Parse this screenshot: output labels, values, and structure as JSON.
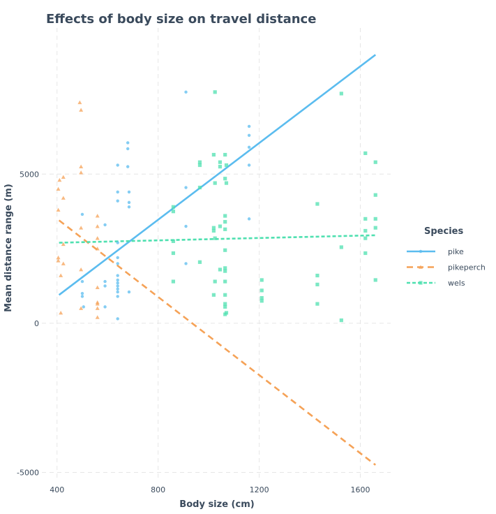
{
  "chart_data": {
    "type": "scatter",
    "title": "Effects of body size on travel distance",
    "xlabel": "Body size (cm)",
    "ylabel": "Mean distance range (m)",
    "xlim": [
      340,
      1720
    ],
    "ylim": [
      -5200,
      9900
    ],
    "x_ticks": [
      400,
      800,
      1200,
      1600
    ],
    "y_ticks": [
      -5000,
      0,
      5000
    ],
    "grid": true,
    "legend_title": "Species",
    "legend_position": "right",
    "series": [
      {
        "name": "pike",
        "color": "#5bbcef",
        "marker": "circle",
        "line_style": "solid",
        "trend": [
          [
            408,
            950
          ],
          [
            1660,
            9000
          ]
        ],
        "points": [
          [
            500,
            3650
          ],
          [
            500,
            1000
          ],
          [
            500,
            900
          ],
          [
            500,
            1400
          ],
          [
            505,
            550
          ],
          [
            590,
            3300
          ],
          [
            590,
            1400
          ],
          [
            590,
            1250
          ],
          [
            590,
            550
          ],
          [
            640,
            5300
          ],
          [
            640,
            4400
          ],
          [
            640,
            4100
          ],
          [
            640,
            2700
          ],
          [
            640,
            2200
          ],
          [
            640,
            2000
          ],
          [
            640,
            1600
          ],
          [
            640,
            1450
          ],
          [
            640,
            1350
          ],
          [
            640,
            1250
          ],
          [
            640,
            1150
          ],
          [
            640,
            1050
          ],
          [
            640,
            900
          ],
          [
            640,
            150
          ],
          [
            680,
            6050
          ],
          [
            680,
            5850
          ],
          [
            680,
            5250
          ],
          [
            685,
            4400
          ],
          [
            685,
            4050
          ],
          [
            685,
            3900
          ],
          [
            685,
            1050
          ],
          [
            910,
            7750
          ],
          [
            910,
            4550
          ],
          [
            910,
            3250
          ],
          [
            910,
            2000
          ],
          [
            1160,
            6600
          ],
          [
            1160,
            6300
          ],
          [
            1160,
            5900
          ],
          [
            1160,
            5300
          ],
          [
            1160,
            3500
          ]
        ]
      },
      {
        "name": "pikeperch",
        "color": "#f5a257",
        "marker": "triangle",
        "line_style": "dashed",
        "trend": [
          [
            408,
            3450
          ],
          [
            1660,
            -4750
          ]
        ],
        "points": [
          [
            405,
            4500
          ],
          [
            405,
            3800
          ],
          [
            405,
            2200
          ],
          [
            405,
            2100
          ],
          [
            410,
            4800
          ],
          [
            415,
            350
          ],
          [
            415,
            1600
          ],
          [
            425,
            4900
          ],
          [
            425,
            4200
          ],
          [
            425,
            2650
          ],
          [
            425,
            2000
          ],
          [
            490,
            7400
          ],
          [
            495,
            7150
          ],
          [
            495,
            5250
          ],
          [
            495,
            5050
          ],
          [
            495,
            3200
          ],
          [
            495,
            1800
          ],
          [
            495,
            500
          ],
          [
            560,
            3600
          ],
          [
            560,
            3250
          ],
          [
            560,
            2850
          ],
          [
            560,
            2500
          ],
          [
            560,
            1200
          ],
          [
            560,
            700
          ],
          [
            560,
            650
          ],
          [
            560,
            500
          ],
          [
            560,
            200
          ]
        ]
      },
      {
        "name": "wels",
        "color": "#4fe0b0",
        "marker": "square",
        "line_style": "dotted",
        "trend": [
          [
            408,
            2700
          ],
          [
            1660,
            2950
          ]
        ],
        "points": [
          [
            860,
            3900
          ],
          [
            860,
            3750
          ],
          [
            860,
            2750
          ],
          [
            860,
            2350
          ],
          [
            860,
            1400
          ],
          [
            965,
            5400
          ],
          [
            965,
            5300
          ],
          [
            965,
            4550
          ],
          [
            965,
            2050
          ],
          [
            1020,
            5650
          ],
          [
            1020,
            3200
          ],
          [
            1020,
            3100
          ],
          [
            1020,
            950
          ],
          [
            1025,
            7750
          ],
          [
            1025,
            4700
          ],
          [
            1025,
            2850
          ],
          [
            1025,
            1400
          ],
          [
            1045,
            5400
          ],
          [
            1045,
            5250
          ],
          [
            1045,
            3250
          ],
          [
            1045,
            1800
          ],
          [
            1065,
            5650
          ],
          [
            1065,
            4850
          ],
          [
            1065,
            3600
          ],
          [
            1065,
            3400
          ],
          [
            1065,
            3150
          ],
          [
            1065,
            2450
          ],
          [
            1065,
            1850
          ],
          [
            1065,
            1750
          ],
          [
            1065,
            1400
          ],
          [
            1065,
            950
          ],
          [
            1065,
            650
          ],
          [
            1065,
            550
          ],
          [
            1065,
            300
          ],
          [
            1070,
            5300
          ],
          [
            1070,
            4700
          ],
          [
            1070,
            350
          ],
          [
            1210,
            1450
          ],
          [
            1210,
            1100
          ],
          [
            1210,
            850
          ],
          [
            1210,
            750
          ],
          [
            1430,
            4000
          ],
          [
            1430,
            1600
          ],
          [
            1430,
            1300
          ],
          [
            1430,
            650
          ],
          [
            1525,
            7700
          ],
          [
            1525,
            2550
          ],
          [
            1525,
            100
          ],
          [
            1620,
            5700
          ],
          [
            1620,
            3500
          ],
          [
            1620,
            3100
          ],
          [
            1620,
            2850
          ],
          [
            1620,
            2350
          ],
          [
            1660,
            5400
          ],
          [
            1660,
            4300
          ],
          [
            1660,
            3500
          ],
          [
            1660,
            3200
          ],
          [
            1660,
            1450
          ]
        ]
      }
    ]
  }
}
